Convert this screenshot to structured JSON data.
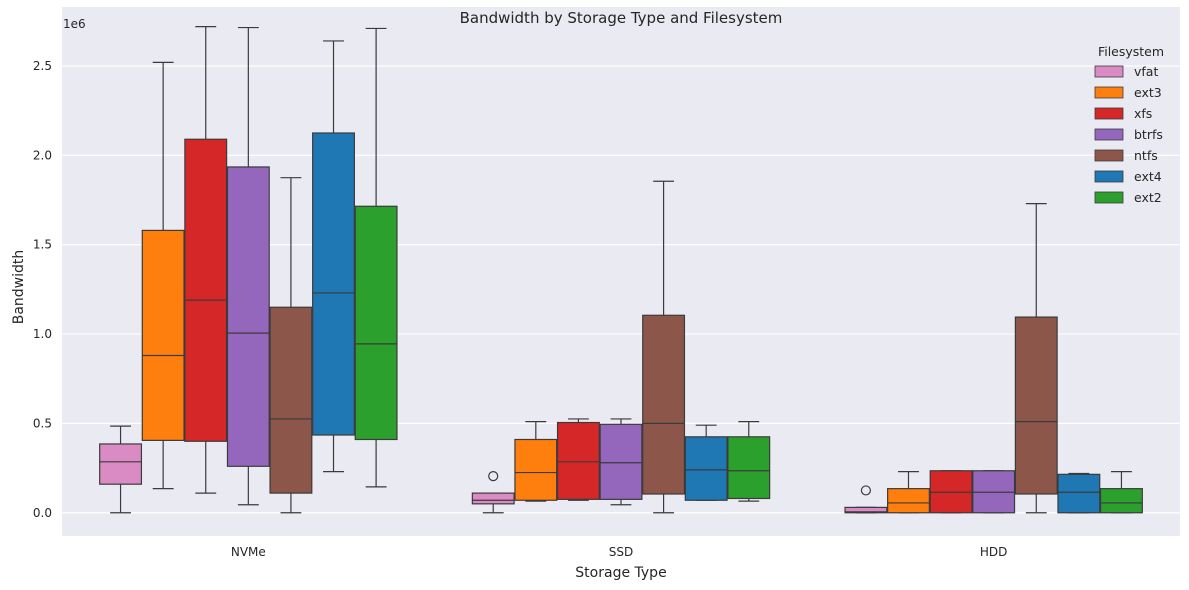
{
  "chart_data": {
    "type": "box",
    "title": "Bandwidth by Storage Type and Filesystem",
    "xlabel": "Storage Type",
    "ylabel": "Bandwidth",
    "y_offset_label": "1e6",
    "y_scale_factor": 1000000,
    "ylim": [
      -130000,
      2830000
    ],
    "yticks": [
      0.0,
      0.5,
      1.0,
      1.5,
      2.0,
      2.5
    ],
    "ytick_labels": [
      "0.0",
      "0.5",
      "1.0",
      "1.5",
      "2.0",
      "2.5"
    ],
    "grid": true,
    "background": "#eaeaf2",
    "categories": [
      "NVMe",
      "SSD",
      "HDD"
    ],
    "legend": {
      "title": "Filesystem",
      "placement": "top-right"
    },
    "series": [
      {
        "name": "vfat",
        "color": "#da8bc3",
        "boxes": [
          {
            "whislo": 0,
            "q1": 160000,
            "med": 285000,
            "q3": 385000,
            "whishi": 485000,
            "fliers": []
          },
          {
            "whislo": 0,
            "q1": 50000,
            "med": 70000,
            "q3": 110000,
            "whishi": 110000,
            "fliers": [
              205000
            ]
          },
          {
            "whislo": 0,
            "q1": 0,
            "med": 5000,
            "q3": 30000,
            "whishi": 30000,
            "fliers": [
              125000
            ]
          }
        ]
      },
      {
        "name": "ext3",
        "color": "#ff7f0e",
        "boxes": [
          {
            "whislo": 135000,
            "q1": 405000,
            "med": 880000,
            "q3": 1580000,
            "whishi": 2520000,
            "fliers": []
          },
          {
            "whislo": 65000,
            "q1": 70000,
            "med": 225000,
            "q3": 410000,
            "whishi": 510000,
            "fliers": []
          },
          {
            "whislo": 0,
            "q1": 0,
            "med": 55000,
            "q3": 135000,
            "whishi": 230000,
            "fliers": []
          }
        ]
      },
      {
        "name": "xfs",
        "color": "#d62728",
        "boxes": [
          {
            "whislo": 110000,
            "q1": 400000,
            "med": 1190000,
            "q3": 2090000,
            "whishi": 2720000,
            "fliers": []
          },
          {
            "whislo": 70000,
            "q1": 75000,
            "med": 285000,
            "q3": 505000,
            "whishi": 525000,
            "fliers": []
          },
          {
            "whislo": 0,
            "q1": 0,
            "med": 115000,
            "q3": 235000,
            "whishi": 235000,
            "fliers": []
          }
        ]
      },
      {
        "name": "btrfs",
        "color": "#9467bd",
        "boxes": [
          {
            "whislo": 45000,
            "q1": 260000,
            "med": 1005000,
            "q3": 1935000,
            "whishi": 2715000,
            "fliers": []
          },
          {
            "whislo": 45000,
            "q1": 75000,
            "med": 280000,
            "q3": 495000,
            "whishi": 525000,
            "fliers": []
          },
          {
            "whislo": 0,
            "q1": 0,
            "med": 115000,
            "q3": 235000,
            "whishi": 235000,
            "fliers": []
          }
        ]
      },
      {
        "name": "ntfs",
        "color": "#8c564b",
        "boxes": [
          {
            "whislo": 0,
            "q1": 110000,
            "med": 525000,
            "q3": 1150000,
            "whishi": 1875000,
            "fliers": []
          },
          {
            "whislo": 0,
            "q1": 105000,
            "med": 500000,
            "q3": 1105000,
            "whishi": 1855000,
            "fliers": []
          },
          {
            "whislo": 0,
            "q1": 105000,
            "med": 510000,
            "q3": 1095000,
            "whishi": 1730000,
            "fliers": []
          }
        ]
      },
      {
        "name": "ext4",
        "color": "#1f77b4",
        "boxes": [
          {
            "whislo": 230000,
            "q1": 435000,
            "med": 1230000,
            "q3": 2125000,
            "whishi": 2640000,
            "fliers": []
          },
          {
            "whislo": 70000,
            "q1": 70000,
            "med": 240000,
            "q3": 425000,
            "whishi": 490000,
            "fliers": []
          },
          {
            "whislo": 0,
            "q1": 0,
            "med": 115000,
            "q3": 215000,
            "whishi": 220000,
            "fliers": []
          }
        ]
      },
      {
        "name": "ext2",
        "color": "#2ca02c",
        "boxes": [
          {
            "whislo": 145000,
            "q1": 410000,
            "med": 945000,
            "q3": 1715000,
            "whishi": 2710000,
            "fliers": []
          },
          {
            "whislo": 65000,
            "q1": 80000,
            "med": 235000,
            "q3": 425000,
            "whishi": 510000,
            "fliers": []
          },
          {
            "whislo": 0,
            "q1": 0,
            "med": 55000,
            "q3": 135000,
            "whishi": 230000,
            "fliers": []
          }
        ]
      }
    ]
  }
}
